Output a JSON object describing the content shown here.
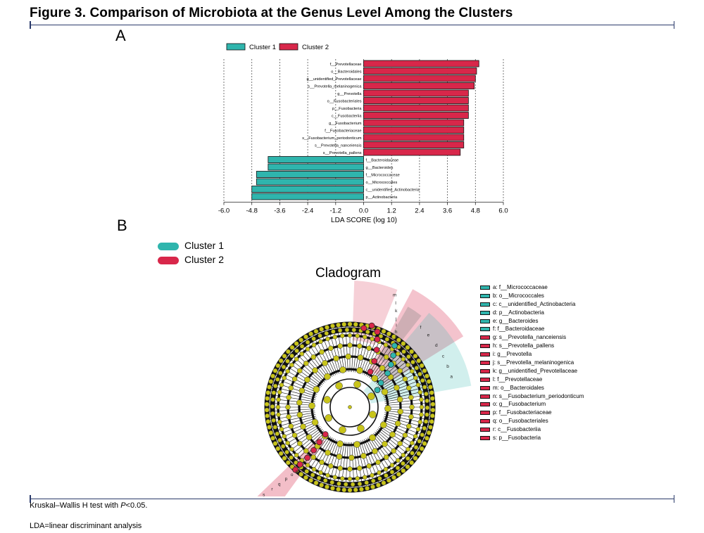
{
  "figure_title": "Figure 3. Comparison of Microbiota at the Genus Level Among the Clusters",
  "panel_a_label": "A",
  "panel_b_label": "B",
  "colors": {
    "cluster1": "#2fb5ad",
    "cluster2": "#d8274a",
    "rule": "#2a3a6a"
  },
  "legend": {
    "cluster1": "Cluster 1",
    "cluster2": "Cluster 2"
  },
  "chart_data": [
    {
      "type": "bar",
      "orientation": "horizontal",
      "title": "",
      "xlabel": "LDA SCORE (log 10)",
      "ylabel": "",
      "xlim": [
        -6.0,
        6.0
      ],
      "xticks": [
        "-6.0",
        "-4.8",
        "-3.6",
        "-2.4",
        "-1.2",
        "0.0",
        "1.2",
        "2.4",
        "3.6",
        "4.8",
        "6.0"
      ],
      "grid": "vertical dashed",
      "legend_position": "top",
      "categories": [
        "f__Prevotellaceae",
        "o__Bacteroidales",
        "g__unidentified_Prevotellaceae",
        "s__Prevotella_melaninogenica",
        "g__Prevotella",
        "o__Fusobacteriales",
        "p__Fusobacteria",
        "c__Fusobacteriia",
        "g__Fusobacterium",
        "f__Fusobacteriaceae",
        "s__Fusobacterium_periodonticum",
        "s__Prevotella_nanceiensis",
        "s__Prevotella_pallens",
        "f__Bacteroidaceae",
        "g__Bacteroides",
        "f__Micrococcaceae",
        "o__Micrococcales",
        "c__unidentified_Actinobacteria",
        "p__Actinobacteria"
      ],
      "values": [
        4.95,
        4.85,
        4.8,
        4.75,
        4.5,
        4.5,
        4.5,
        4.5,
        4.3,
        4.3,
        4.3,
        4.3,
        4.15,
        -4.1,
        -4.1,
        -4.6,
        -4.6,
        -4.8,
        -4.8
      ],
      "series": [
        {
          "name": "Cluster 1",
          "categories": [
            "f__Bacteroidaceae",
            "g__Bacteroides",
            "f__Micrococcaceae",
            "o__Micrococcales",
            "c__unidentified_Actinobacteria",
            "p__Actinobacteria"
          ]
        },
        {
          "name": "Cluster 2",
          "categories": [
            "f__Prevotellaceae",
            "o__Bacteroidales",
            "g__unidentified_Prevotellaceae",
            "s__Prevotella_melaninogenica",
            "g__Prevotella",
            "o__Fusobacteriales",
            "p__Fusobacteria",
            "c__Fusobacteriia",
            "g__Fusobacterium",
            "f__Fusobacteriaceae",
            "s__Fusobacterium_periodonticum",
            "s__Prevotella_nanceiensis",
            "s__Prevotella_pallens"
          ]
        }
      ]
    },
    {
      "type": "cladogram",
      "title": "Cladogram",
      "legend_position": "top-left",
      "node_labels": [
        "a",
        "b",
        "c",
        "d",
        "e",
        "f",
        "g",
        "h",
        "i",
        "j",
        "k",
        "l",
        "m",
        "n",
        "o",
        "p",
        "q",
        "r",
        "s"
      ],
      "legend_entries": [
        {
          "key": "a: f__Micrococcaceae",
          "cluster": 1
        },
        {
          "key": "b: o__Micrococcales",
          "cluster": 1
        },
        {
          "key": "c: c__unidentified_Actinobacteria",
          "cluster": 1
        },
        {
          "key": "d: p__Actinobacteria",
          "cluster": 1
        },
        {
          "key": "e: g__Bacteroides",
          "cluster": 1
        },
        {
          "key": "f: f__Bacteroidaceae",
          "cluster": 1
        },
        {
          "key": "g: s__Prevotella_nanceiensis",
          "cluster": 2
        },
        {
          "key": "h: s__Prevotella_pallens",
          "cluster": 2
        },
        {
          "key": "i: g__Prevotella",
          "cluster": 2
        },
        {
          "key": "j: s__Prevotella_melaninogenica",
          "cluster": 2
        },
        {
          "key": "k: g__unidentified_Prevotellaceae",
          "cluster": 2
        },
        {
          "key": "l: f__Prevotellaceae",
          "cluster": 2
        },
        {
          "key": "m: o__Bacteroidales",
          "cluster": 2
        },
        {
          "key": "n: s__Fusobacterium_periodonticum",
          "cluster": 2
        },
        {
          "key": "o: g__Fusobacterium",
          "cluster": 2
        },
        {
          "key": "p: f__Fusobacteriaceae",
          "cluster": 2
        },
        {
          "key": "q: o__Fusobacteriales",
          "cluster": 2
        },
        {
          "key": "r: c__Fusobacteriia",
          "cluster": 2
        },
        {
          "key": "s: p__Fusobacteria",
          "cluster": 2
        }
      ]
    }
  ],
  "footnote_prefix": "Kruskal–Wallis H test with ",
  "footnote_p": "P",
  "footnote_suffix": "<0.05.",
  "footnote_2": "LDA=linear discriminant analysis"
}
